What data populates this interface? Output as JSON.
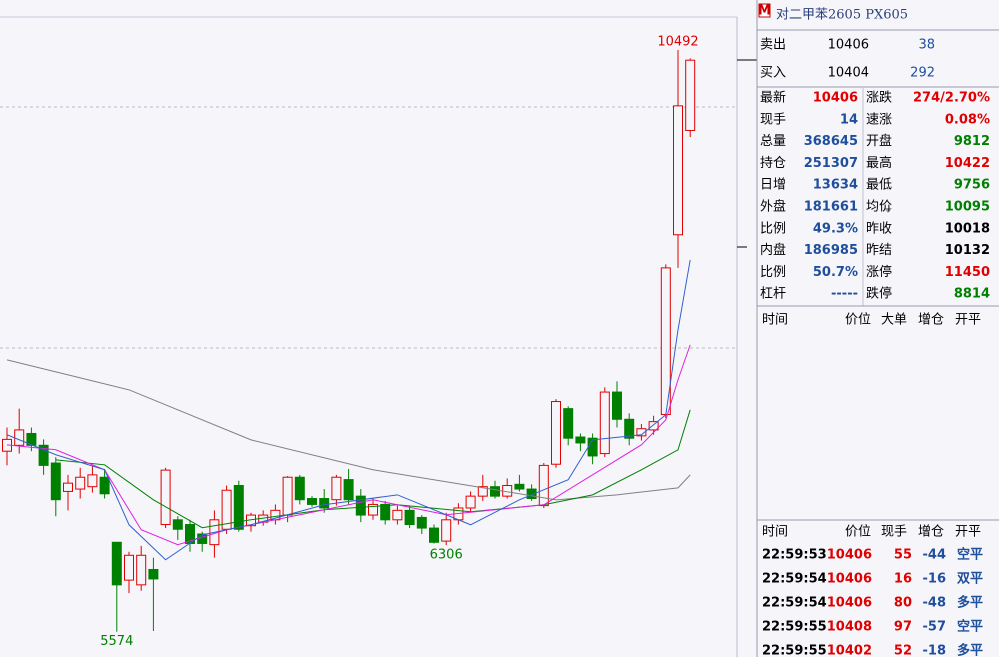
{
  "chart_data": {
    "type": "candlestick",
    "open": [
      7100,
      7150,
      7250,
      7150,
      7000,
      6760,
      6780,
      6800,
      6880,
      6330,
      6010,
      5970,
      6100,
      6480,
      6520,
      6480,
      6400,
      6310,
      6440,
      6810,
      6470,
      6500,
      6520,
      6560,
      6880,
      6700,
      6700,
      6690,
      6860,
      6720,
      6560,
      6650,
      6520,
      6600,
      6540,
      6450,
      6340,
      6520,
      6620,
      6720,
      6800,
      6720,
      6820,
      6780,
      6640,
      6990,
      7460,
      7220,
      7210,
      7080,
      7600,
      7370,
      7230,
      7280,
      7410,
      8930,
      9812
    ],
    "high": [
      7300,
      7460,
      7300,
      7200,
      7050,
      6900,
      6960,
      6980,
      6950,
      6330,
      6250,
      6300,
      6200,
      6960,
      6550,
      6520,
      6420,
      6600,
      6810,
      6850,
      6580,
      6600,
      6650,
      6890,
      6900,
      6720,
      6780,
      6900,
      6950,
      6780,
      6700,
      6680,
      6640,
      6640,
      6560,
      6480,
      6580,
      6660,
      6760,
      6900,
      6850,
      6870,
      6900,
      6820,
      7000,
      7540,
      7480,
      7250,
      7250,
      7640,
      7690,
      7420,
      7330,
      7400,
      8680,
      10492,
      10422
    ],
    "low": [
      6980,
      7080,
      7100,
      6900,
      6550,
      6600,
      6700,
      6750,
      6700,
      5574,
      5900,
      5920,
      5580,
      6450,
      6350,
      6250,
      6250,
      6200,
      6400,
      6420,
      6420,
      6470,
      6480,
      6500,
      6650,
      6630,
      6580,
      6640,
      6650,
      6500,
      6520,
      6480,
      6480,
      6450,
      6400,
      6320,
      6306,
      6480,
      6580,
      6680,
      6700,
      6700,
      6760,
      6680,
      6620,
      6960,
      7150,
      7100,
      6990,
      7050,
      7300,
      7150,
      7190,
      7240,
      7380,
      8650,
      9756
    ],
    "close": [
      7200,
      7280,
      7150,
      6980,
      6690,
      6830,
      6880,
      6900,
      6740,
      5970,
      6220,
      6220,
      6020,
      6940,
      6440,
      6320,
      6320,
      6520,
      6770,
      6440,
      6560,
      6560,
      6600,
      6880,
      6690,
      6650,
      6620,
      6880,
      6690,
      6560,
      6650,
      6520,
      6600,
      6480,
      6450,
      6330,
      6520,
      6620,
      6720,
      6800,
      6720,
      6810,
      6780,
      6700,
      6980,
      7520,
      7210,
      7170,
      7060,
      7600,
      7370,
      7210,
      7290,
      7350,
      8650,
      10020,
      10406
    ],
    "up_color": "#e00000",
    "down_color": "#008000",
    "ylim": [
      5360,
      10915
    ],
    "annotations": [
      {
        "x": 55,
        "field": "high"
      },
      {
        "x": 36,
        "field": "low"
      },
      {
        "x": 9,
        "field": "low"
      }
    ],
    "ma_lines": [
      {
        "color": "#808080",
        "x": [
          0,
          10,
          20,
          30,
          40,
          45,
          50,
          55,
          56
        ],
        "values": [
          7872,
          7619,
          7196,
          6943,
          6774,
          6689,
          6731,
          6790,
          6900
        ]
      },
      {
        "color": "#008000",
        "x": [
          4,
          8,
          12,
          16,
          20,
          26,
          32,
          38,
          44,
          48,
          52,
          55,
          56
        ],
        "values": [
          7027,
          6985,
          6689,
          6453,
          6520,
          6605,
          6647,
          6588,
          6647,
          6731,
          6943,
          7112,
          7450
        ]
      },
      {
        "color": "#e020e0",
        "x": [
          0,
          4,
          8,
          11,
          14,
          18,
          24,
          30,
          36,
          40,
          44,
          48,
          52,
          54,
          55,
          56
        ],
        "values": [
          7154,
          7112,
          6943,
          6436,
          6309,
          6436,
          6563,
          6689,
          6563,
          6605,
          6647,
          6900,
          7154,
          7365,
          7704,
          7999
        ]
      },
      {
        "color": "#3060d0",
        "x": [
          0,
          4,
          8,
          10,
          13,
          16,
          20,
          26,
          32,
          38,
          42,
          46,
          48,
          52,
          54,
          55,
          56
        ],
        "values": [
          7239,
          7070,
          6943,
          6478,
          6182,
          6393,
          6478,
          6647,
          6731,
          6478,
          6689,
          6859,
          7196,
          7239,
          7408,
          8126,
          8717
        ]
      }
    ]
  },
  "panel": {
    "badge": "M",
    "title": "对二甲苯2605  PX605",
    "orderbook": [
      {
        "label": "卖出",
        "price": "10406",
        "volume": "38"
      },
      {
        "label": "买入",
        "price": "10404",
        "volume": "292"
      }
    ],
    "stats": [
      [
        {
          "label": "最新",
          "value": "10406",
          "color": "#e00000"
        },
        {
          "label": "涨跌",
          "value": "274/2.70%",
          "color": "#e00000"
        }
      ],
      [
        {
          "label": "现手",
          "value": "14",
          "color": "#1f4e9c"
        },
        {
          "label": "速涨",
          "value": "0.08%",
          "color": "#e00000"
        }
      ],
      [
        {
          "label": "总量",
          "value": "368645",
          "color": "#1f4e9c"
        },
        {
          "label": "开盘",
          "value": "9812",
          "color": "#008000"
        }
      ],
      [
        {
          "label": "持仓",
          "value": "251307",
          "color": "#1f4e9c"
        },
        {
          "label": "最高",
          "value": "10422",
          "color": "#e00000"
        }
      ],
      [
        {
          "label": "日增",
          "value": "13634",
          "color": "#1f4e9c"
        },
        {
          "label": "最低",
          "value": "9756",
          "color": "#008000"
        }
      ],
      [
        {
          "label": "外盘",
          "value": "181661",
          "color": "#1f4e9c"
        },
        {
          "label": "均价",
          "value": "10095",
          "color": "#008000"
        }
      ],
      [
        {
          "label": "比例",
          "value": "49.3%",
          "color": "#1f4e9c"
        },
        {
          "label": "昨收",
          "value": "10018",
          "color": "#000000"
        }
      ],
      [
        {
          "label": "内盘",
          "value": "186985",
          "color": "#1f4e9c"
        },
        {
          "label": "昨结",
          "value": "10132",
          "color": "#000000"
        }
      ],
      [
        {
          "label": "比例",
          "value": "50.7%",
          "color": "#1f4e9c"
        },
        {
          "label": "涨停",
          "value": "11450",
          "color": "#e00000"
        }
      ],
      [
        {
          "label": "杠杆",
          "value": "-----",
          "color": "#1f4e9c"
        },
        {
          "label": "跌停",
          "value": "8814",
          "color": "#008000"
        }
      ]
    ],
    "tick_header": [
      "时间",
      "价位",
      "大单",
      "增仓",
      "开平"
    ],
    "trade_header": [
      "时间",
      "价位",
      "现手",
      "增仓",
      "开平"
    ],
    "trades": [
      [
        "22:59:53",
        "10406",
        "55",
        "-44",
        "空平"
      ],
      [
        "22:59:54",
        "10406",
        "16",
        "-16",
        "双平"
      ],
      [
        "22:59:54",
        "10406",
        "80",
        "-48",
        "多平"
      ],
      [
        "22:59:55",
        "10408",
        "97",
        "-57",
        "空平"
      ],
      [
        "22:59:55",
        "10402",
        "52",
        "-18",
        "多平"
      ]
    ],
    "trade_colors": [
      "#000000",
      "#e00000",
      "#e00000",
      "#1f4e9c",
      "#1f4e9c"
    ]
  }
}
